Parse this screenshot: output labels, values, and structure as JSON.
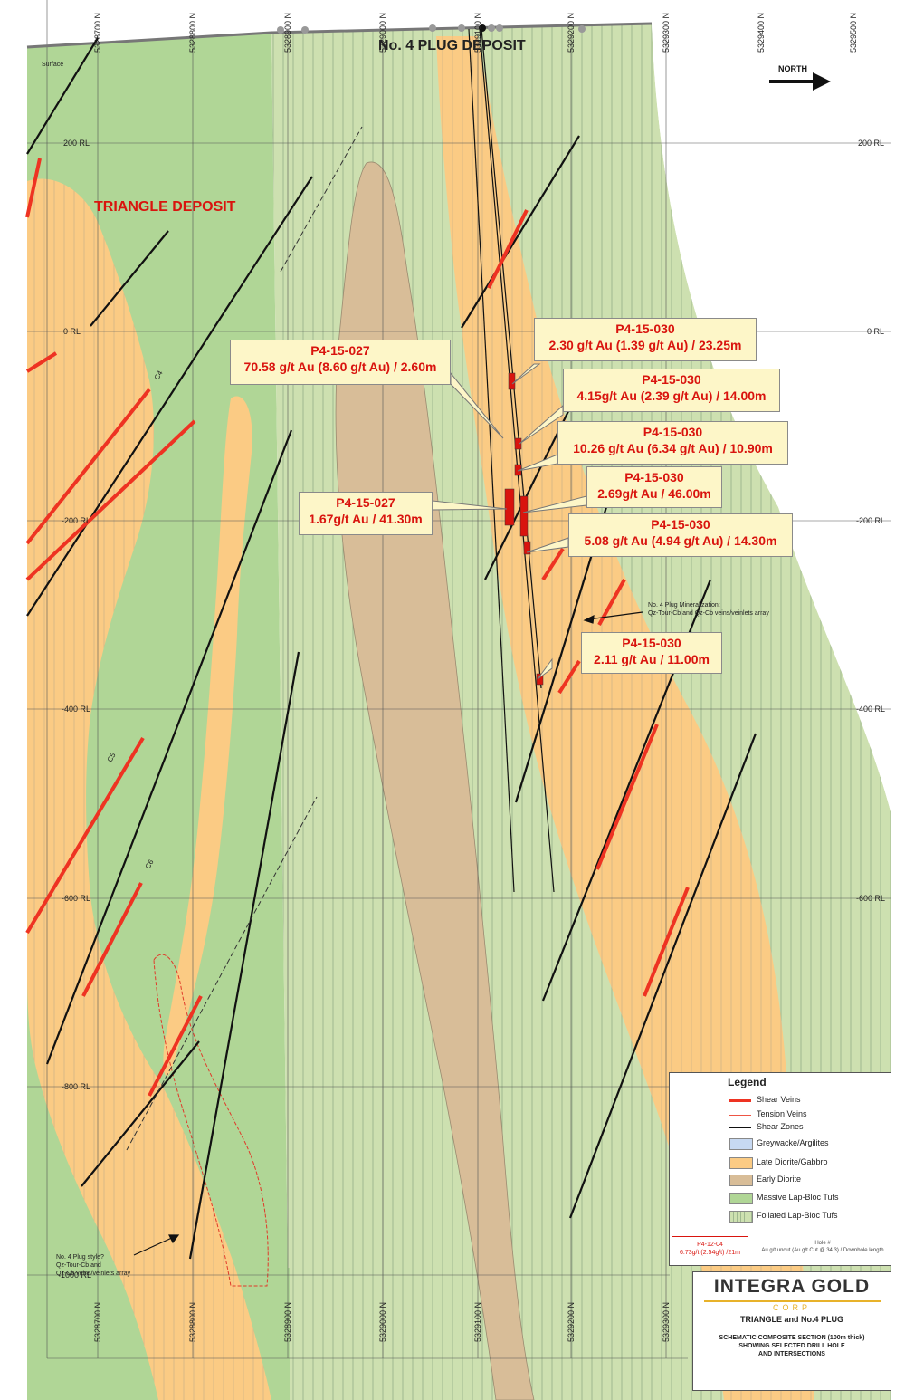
{
  "titles": {
    "plug": "No. 4 PLUG DEPOSIT",
    "triangle": "TRIANGLE DEPOSIT",
    "surface": "Surface",
    "north": "NORTH"
  },
  "northings": [
    "5328700 N",
    "5328800 N",
    "5328900 N",
    "5329000 N",
    "5329100 N",
    "5329200 N",
    "5329300 N",
    "5329400 N",
    "5329500 N"
  ],
  "rl_left": [
    "200 RL",
    "0 RL",
    "-200 RL",
    "-400 RL",
    "-600 RL",
    "-800 RL",
    "-1000 RL"
  ],
  "rl_right": [
    "200 RL",
    "0 RL",
    "-200 RL",
    "-400 RL",
    "-600 RL"
  ],
  "vein_tags": [
    "C4",
    "C5",
    "C6"
  ],
  "callouts": [
    {
      "hole": "P4-15-030",
      "value": "2.30 g/t Au (1.39 g/t Au) / 23.25m"
    },
    {
      "hole": "P4-15-027",
      "value": "70.58 g/t Au (8.60 g/t Au) / 2.60m"
    },
    {
      "hole": "P4-15-030",
      "value": "4.15g/t Au (2.39 g/t Au) / 14.00m"
    },
    {
      "hole": "P4-15-030",
      "value": "10.26 g/t Au (6.34 g/t Au) / 10.90m"
    },
    {
      "hole": "P4-15-030",
      "value": "2.69g/t Au / 46.00m"
    },
    {
      "hole": "P4-15-027",
      "value": "1.67g/t Au / 41.30m"
    },
    {
      "hole": "P4-15-030",
      "value": "5.08 g/t Au (4.94 g/t Au) / 14.30m"
    },
    {
      "hole": "P4-15-030",
      "value": "2.11 g/t Au / 11.00m"
    }
  ],
  "annotations": {
    "mineralization_1": "No. 4 Plug Mineralization:",
    "mineralization_2": "Qz-Tour-Cb and Qz-Cb veins/veinlets array",
    "style_1": "No. 4 Plug style?",
    "style_2": "Qz-Tour-Cb and",
    "style_3": "Qz-Cb veins/veinlets array"
  },
  "legend": {
    "title": "Legend",
    "items": [
      {
        "label": "Shear Veins",
        "color": "#ee3322",
        "kind": "thick-line"
      },
      {
        "label": "Tension Veins",
        "color": "#ee5544",
        "kind": "thin-line"
      },
      {
        "label": "Shear Zones",
        "color": "#111111",
        "kind": "line"
      },
      {
        "label": "Greywacke/Argilites",
        "color": "#c7d9f2",
        "kind": "box"
      },
      {
        "label": "Late Diorite/Gabbro",
        "color": "#fbcb84",
        "kind": "box"
      },
      {
        "label": "Early Diorite",
        "color": "#d8bd98",
        "kind": "box"
      },
      {
        "label": "Massive Lap-Bloc Tufs",
        "color": "#b0d696",
        "kind": "box"
      },
      {
        "label": "Foliated Lap-Bloc Tufs",
        "color": "#cde0b0",
        "kind": "hatched"
      }
    ],
    "sample_hole": "P4-12-04",
    "sample_value": "6.73g/t (2.54g/t) /21m",
    "note_1": "Hole #",
    "note_2": "Au g/t uncut (Au g/t Cut @ 34.3) / Downhole length"
  },
  "logo": {
    "name": "INTEGRA GOLD",
    "corp": "CORP",
    "title": "TRIANGLE and No.4 PLUG",
    "sub_1": "SCHEMATIC COMPOSITE SECTION (100m thick)",
    "sub_2": "SHOWING SELECTED DRILL HOLE",
    "sub_3": "AND INTERSECTIONS"
  },
  "colors": {
    "massive_tuff": "#b0d696",
    "foliated_tuff": "#cde0b0",
    "late_diorite": "#fbcb84",
    "early_diorite": "#d8bd98",
    "shear_vein": "#ee3322",
    "callout_text": "#d9140e"
  }
}
